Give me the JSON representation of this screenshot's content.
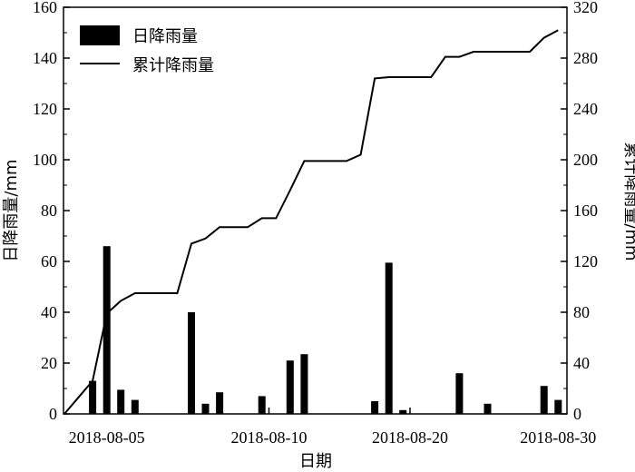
{
  "chart_data": {
    "type": "bar+line",
    "x_tick_labels": [
      "2018-08-05",
      "2018-08-10",
      "2018-08-20",
      "2018-08-30"
    ],
    "xlabel": "日期",
    "ylabel_left": "日降雨量/mm",
    "ylabel_right": "累计降雨量/mm",
    "ylim_left": [
      0,
      160
    ],
    "ylim_right": [
      0,
      320
    ],
    "yticks_left": [
      0,
      20,
      40,
      60,
      80,
      100,
      120,
      140,
      160
    ],
    "yticks_right": [
      0,
      40,
      80,
      120,
      160,
      200,
      240,
      280,
      320
    ],
    "legend": {
      "placement": "top-left",
      "entries": [
        "日降雨量",
        "累计降雨量"
      ]
    },
    "grid": false,
    "series": [
      {
        "name": "日降雨量",
        "type": "bar",
        "axis": "left",
        "x": [
          2,
          3,
          4,
          5,
          9,
          10,
          11,
          14,
          16,
          17,
          22,
          23,
          24,
          28,
          30,
          34,
          35
        ],
        "values": [
          13,
          66,
          9.5,
          5.5,
          40,
          4,
          8.5,
          7,
          21,
          23.5,
          5,
          59.5,
          1.5,
          16,
          4,
          11,
          5.5
        ]
      },
      {
        "name": "累计降雨量",
        "type": "line",
        "axis": "right",
        "x": [
          0,
          1,
          2,
          3,
          4,
          5,
          6,
          7,
          8,
          9,
          10,
          11,
          12,
          13,
          14,
          15,
          16,
          17,
          18,
          19,
          20,
          21,
          22,
          23,
          24,
          25,
          26,
          27,
          28,
          29,
          30,
          31,
          32,
          33,
          34,
          35
        ],
        "values": [
          0,
          13,
          26,
          79,
          89,
          95,
          95,
          95,
          95,
          134,
          138,
          147,
          147,
          147,
          154,
          154,
          176,
          199,
          199,
          199,
          199,
          204,
          264,
          265,
          265,
          265,
          265,
          281,
          281,
          285,
          285,
          285,
          285,
          285,
          296,
          302
        ]
      }
    ]
  }
}
